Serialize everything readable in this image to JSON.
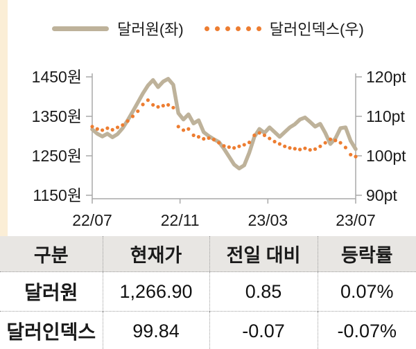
{
  "colors": {
    "accent_stripe": "#fbeed6",
    "table_header_bg": "#e8e6e3",
    "axis": "#a9a9a9",
    "text": "#1a1a1a"
  },
  "chart_data": {
    "type": "line",
    "grid": false,
    "legend_position": "top",
    "x_tick_labels": [
      "22/07",
      "22/11",
      "23/03",
      "23/07"
    ],
    "left_axis": {
      "unit": "원",
      "min": 1150,
      "max": 1450,
      "tick_values": [
        1450,
        1350,
        1250,
        1150
      ],
      "tick_labels": [
        "1450원",
        "1350원",
        "1250원",
        "1150원"
      ]
    },
    "right_axis": {
      "unit": "pt",
      "min": 90,
      "max": 120,
      "tick_values": [
        120,
        110,
        100,
        90
      ],
      "tick_labels": [
        "120pt",
        "110pt",
        "100pt",
        "90pt"
      ]
    },
    "series": [
      {
        "name": "달러원(좌)",
        "axis": "left",
        "marker": "line",
        "color": "#beb29a",
        "values": [
          1317,
          1306,
          1299,
          1306,
          1297,
          1305,
          1320,
          1340,
          1362,
          1385,
          1408,
          1428,
          1442,
          1424,
          1438,
          1445,
          1430,
          1358,
          1342,
          1355,
          1332,
          1340,
          1310,
          1300,
          1292,
          1285,
          1268,
          1248,
          1228,
          1218,
          1226,
          1258,
          1298,
          1318,
          1308,
          1322,
          1310,
          1298,
          1310,
          1322,
          1330,
          1342,
          1347,
          1336,
          1324,
          1331,
          1308,
          1280,
          1294,
          1320,
          1322,
          1288,
          1267
        ]
      },
      {
        "name": "달러인덱스(우)",
        "axis": "right",
        "marker": "dots",
        "color": "#ed7d31",
        "values": [
          107.4,
          106.8,
          106.5,
          107.0,
          106.6,
          107.2,
          107.8,
          108.8,
          110.0,
          111.3,
          113.0,
          114.1,
          112.9,
          112.4,
          112.7,
          112.9,
          112.2,
          107.4,
          106.5,
          106.8,
          105.2,
          104.8,
          104.3,
          104.5,
          104.1,
          103.3,
          102.5,
          102.2,
          102.0,
          102.4,
          102.8,
          103.4,
          105.2,
          105.8,
          105.2,
          104.4,
          103.6,
          103.0,
          102.4,
          102.0,
          101.8,
          101.6,
          101.9,
          101.5,
          101.7,
          102.4,
          103.3,
          104.2,
          103.9,
          103.3,
          102.1,
          100.3,
          99.8
        ]
      }
    ]
  },
  "table": {
    "headers": [
      "구분",
      "현재가",
      "전일 대비",
      "등락률"
    ],
    "rows": [
      {
        "label": "달러원",
        "price": "1,266.90",
        "change": "0.85",
        "rate": "0.07%"
      },
      {
        "label": "달러인덱스",
        "price": "99.84",
        "change": "-0.07",
        "rate": "-0.07%"
      }
    ]
  }
}
